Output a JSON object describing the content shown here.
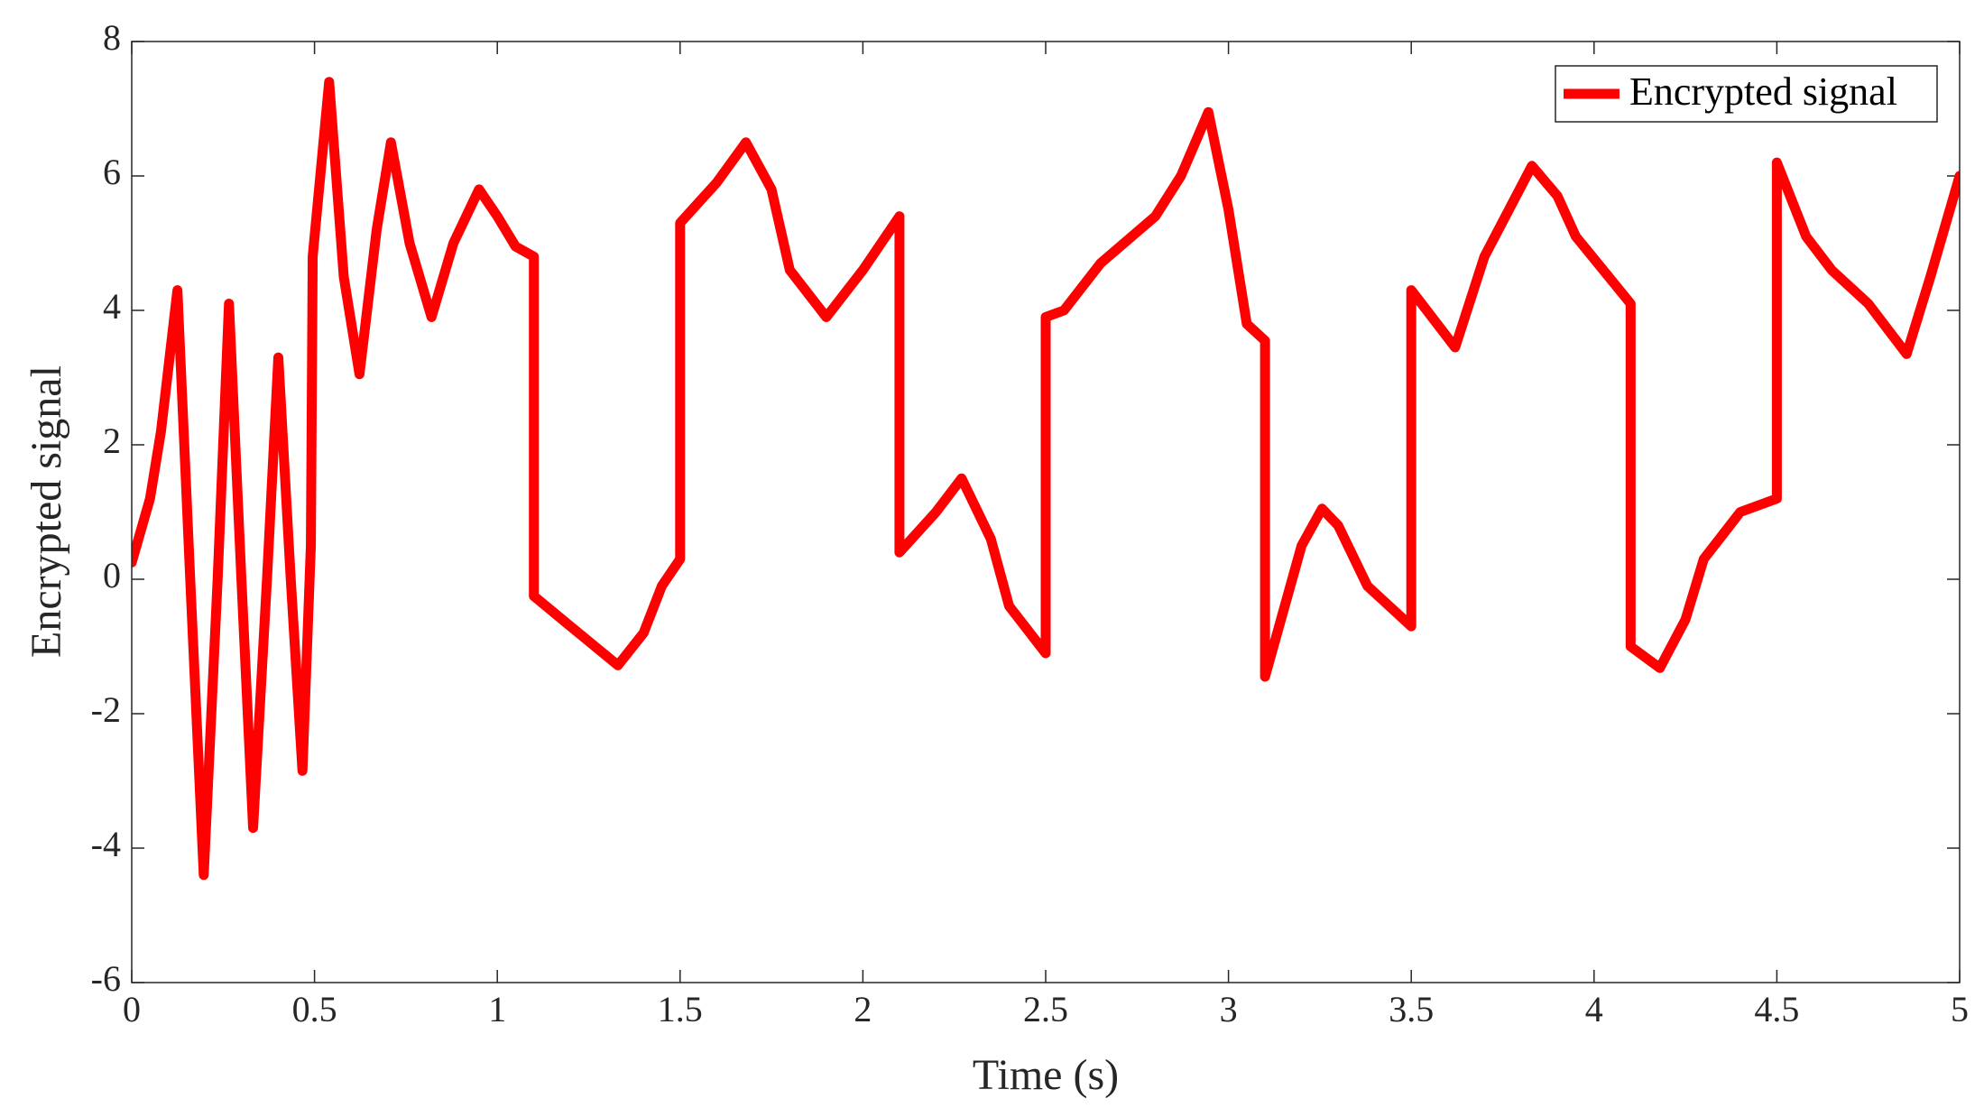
{
  "chart_data": {
    "type": "line",
    "x_label": "Time (s)",
    "y_label": "Encrypted signal",
    "x": [
      0,
      0.05,
      0.08,
      0.125,
      0.16,
      0.197,
      0.235,
      0.266,
      0.3,
      0.332,
      0.37,
      0.401,
      0.435,
      0.467,
      0.49,
      0.495,
      0.54,
      0.58,
      0.623,
      0.67,
      0.709,
      0.76,
      0.82,
      0.88,
      0.95,
      1.0,
      1.05,
      1.1,
      1.1,
      1.2,
      1.33,
      1.4,
      1.45,
      1.5,
      1.5,
      1.6,
      1.68,
      1.75,
      1.8,
      1.9,
      2.0,
      2.1,
      2.1,
      2.2,
      2.27,
      2.35,
      2.4,
      2.5,
      2.5,
      2.55,
      2.65,
      2.8,
      2.87,
      2.945,
      3.0,
      3.05,
      3.1,
      3.1,
      3.2,
      3.256,
      3.3,
      3.38,
      3.5,
      3.5,
      3.62,
      3.7,
      3.83,
      3.9,
      3.95,
      4.1,
      4.1,
      4.18,
      4.25,
      4.3,
      4.4,
      4.5,
      4.5,
      4.58,
      4.65,
      4.75,
      4.855,
      4.92,
      5.0
    ],
    "series": [
      {
        "name": "Encrypted signal",
        "color": "#ff0000",
        "values": [
          0.25,
          1.2,
          2.2,
          4.3,
          0,
          -4.4,
          0,
          4.1,
          0,
          -3.7,
          0,
          3.3,
          0,
          -2.85,
          0.5,
          4.8,
          7.4,
          4.5,
          3.05,
          5.2,
          6.5,
          5.0,
          3.9,
          5.0,
          5.8,
          5.4,
          4.95,
          4.8,
          -0.25,
          -0.7,
          -1.28,
          -0.8,
          -0.1,
          0.3,
          5.3,
          5.9,
          6.5,
          5.8,
          4.6,
          3.9,
          4.6,
          5.4,
          0.4,
          1.0,
          1.5,
          0.6,
          -0.4,
          -1.1,
          3.9,
          4.0,
          4.7,
          5.4,
          6.0,
          6.95,
          5.5,
          3.8,
          3.55,
          -1.45,
          0.5,
          1.05,
          0.8,
          -0.1,
          -0.7,
          4.3,
          3.45,
          4.8,
          6.15,
          5.7,
          5.1,
          4.1,
          -1.0,
          -1.32,
          -0.6,
          0.3,
          1.0,
          1.2,
          6.2,
          5.1,
          4.6,
          4.1,
          3.35,
          4.5,
          6.0
        ]
      }
    ],
    "xlim": [
      0,
      5
    ],
    "xticks": [
      0,
      0.5,
      1,
      1.5,
      2,
      2.5,
      3,
      3.5,
      4,
      4.5,
      5
    ],
    "ylim": [
      -6,
      8
    ],
    "yticks": [
      -6,
      -4,
      -2,
      0,
      2,
      4,
      6,
      8
    ],
    "grid": false,
    "legend": "northeast"
  }
}
